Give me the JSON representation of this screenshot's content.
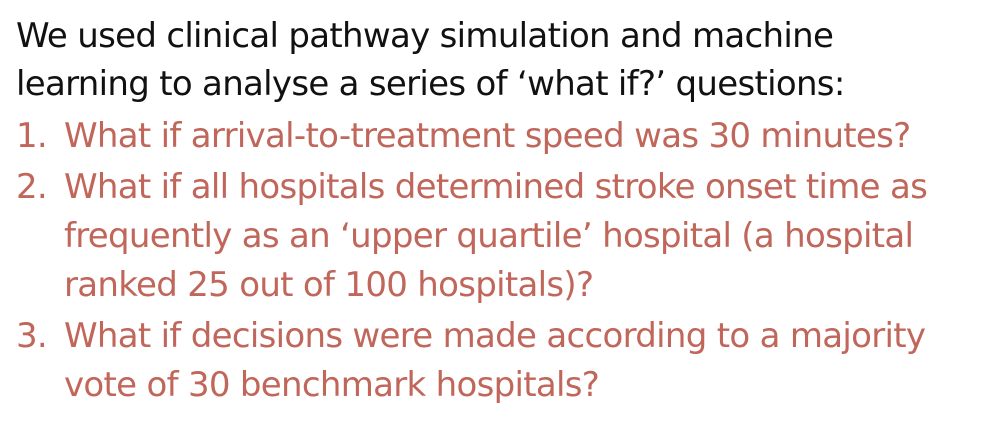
{
  "intro": {
    "line1": "We used clinical pathway simulation and machine",
    "line2": "learning to analyse a series of ‘what if?’ questions:"
  },
  "colors": {
    "intro_text": "#111111",
    "question_text": "#c0665a"
  },
  "questions": [
    {
      "number": "1.",
      "text": "What if arrival-to-treatment speed was 30 minutes?"
    },
    {
      "number": "2.",
      "text": "What if all hospitals determined stroke onset time as\nfrequently as an ‘upper quartile’ hospital (a hospital\nranked 25 out of 100 hospitals)?"
    },
    {
      "number": "3.",
      "text": "What if decisions were made according to a majority\nvote of 30 benchmark hospitals?"
    }
  ]
}
